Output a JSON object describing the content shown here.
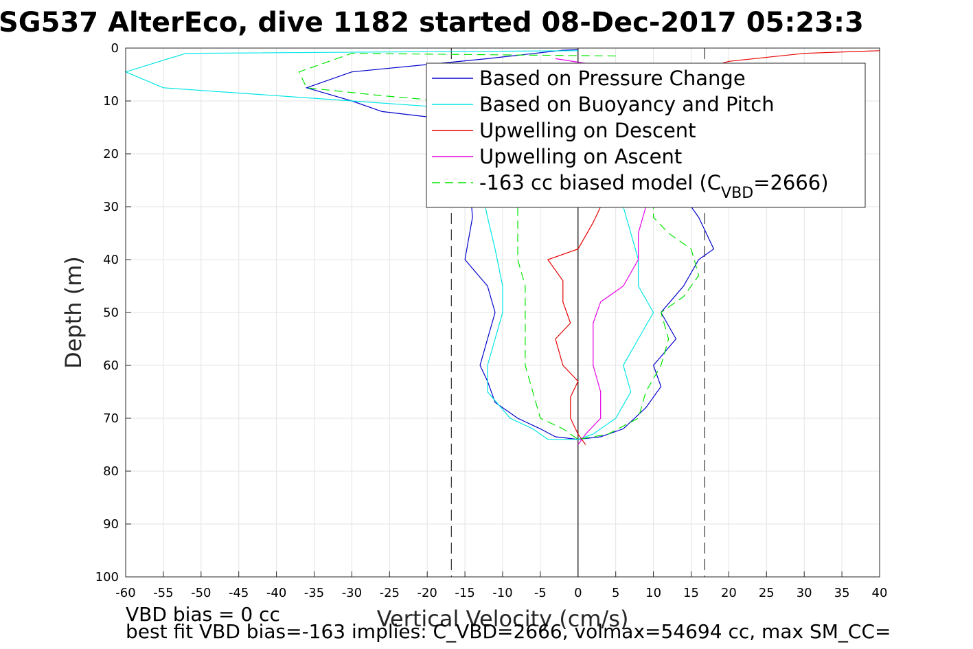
{
  "chart_data": {
    "type": "line",
    "title": "SG537 AlterEco, dive 1182 started 08-Dec-2017 05:23:3",
    "xlabel": "Vertical Velocity (cm/s)",
    "ylabel": "Depth (m)",
    "xlim": [
      -60,
      40
    ],
    "ylim": [
      0,
      100
    ],
    "y_reversed": true,
    "grid": true,
    "legend_position": "top-right",
    "xticks": [
      "-60",
      "-55",
      "-50",
      "-45",
      "-40",
      "-35",
      "-30",
      "-25",
      "-20",
      "-15",
      "-10",
      "-5",
      "0",
      "5",
      "10",
      "15",
      "20",
      "25",
      "30",
      "35",
      "40"
    ],
    "yticks": [
      "0",
      "10",
      "20",
      "30",
      "40",
      "50",
      "60",
      "70",
      "80",
      "90",
      "100"
    ],
    "reference_lines": [
      {
        "x": -16.8,
        "style": "dashed",
        "color": "#333333"
      },
      {
        "x": 0,
        "style": "solid",
        "color": "#000000"
      },
      {
        "x": 16.8,
        "style": "dashed",
        "color": "#333333"
      }
    ],
    "legend": [
      {
        "label": "Based on Pressure Change",
        "color": "#0000cc",
        "dash": "solid"
      },
      {
        "label": "Based on Buoyancy and Pitch",
        "color": "#00e5e5",
        "dash": "solid"
      },
      {
        "label": "Upwelling on Descent",
        "color": "#e50000",
        "dash": "solid"
      },
      {
        "label": "Upwelling on Ascent",
        "color": "#e500e5",
        "dash": "solid"
      },
      {
        "label": "-163 cc biased model (C",
        "sub": "VBD",
        "suffix": "=2666)",
        "color": "#00e500",
        "dash": "dashed"
      }
    ],
    "series": [
      {
        "name": "Based on Pressure Change",
        "color": "#0000cc",
        "dash": "solid",
        "points": [
          [
            0,
            0.3
          ],
          [
            -2,
            0.4
          ],
          [
            -12,
            2
          ],
          [
            -30,
            4.5
          ],
          [
            -36,
            7.5
          ],
          [
            -30,
            10
          ],
          [
            -26,
            12
          ],
          [
            -20,
            13
          ],
          [
            -15,
            14
          ],
          [
            -14,
            32
          ],
          [
            -15,
            40
          ],
          [
            -12,
            45
          ],
          [
            -11,
            50
          ],
          [
            -12,
            55
          ],
          [
            -13,
            60
          ],
          [
            -12,
            63
          ],
          [
            -11,
            67
          ],
          [
            -8,
            70
          ],
          [
            -5,
            72
          ],
          [
            -3,
            73.5
          ],
          [
            0,
            74
          ],
          [
            3,
            73.5
          ],
          [
            6,
            72
          ],
          [
            9,
            68
          ],
          [
            11,
            64
          ],
          [
            10,
            60
          ],
          [
            13,
            55
          ],
          [
            11,
            50
          ],
          [
            14,
            45
          ],
          [
            16,
            40
          ],
          [
            18,
            38
          ],
          [
            17,
            35
          ],
          [
            16,
            32
          ],
          [
            15,
            30
          ]
        ]
      },
      {
        "name": "Based on Buoyancy and Pitch",
        "color": "#00e5e5",
        "dash": "solid",
        "points": [
          [
            0,
            0.5
          ],
          [
            -52,
            1
          ],
          [
            -60,
            4.5
          ],
          [
            -55,
            7.5
          ],
          [
            -30,
            10
          ],
          [
            -20,
            11
          ],
          [
            -15,
            12
          ],
          [
            -12,
            32
          ],
          [
            -11,
            38
          ],
          [
            -10,
            45
          ],
          [
            -10,
            50
          ],
          [
            -11,
            55
          ],
          [
            -12,
            60
          ],
          [
            -12,
            65
          ],
          [
            -9,
            70
          ],
          [
            -6,
            72
          ],
          [
            -4,
            74
          ],
          [
            0,
            74
          ],
          [
            2,
            73
          ],
          [
            5,
            70
          ],
          [
            7,
            65
          ],
          [
            6,
            60
          ],
          [
            8,
            55
          ],
          [
            10,
            50
          ],
          [
            8,
            45
          ],
          [
            8,
            40
          ],
          [
            7,
            35
          ],
          [
            6,
            30
          ]
        ]
      },
      {
        "name": "Upwelling on Descent",
        "color": "#e50000",
        "dash": "solid",
        "points": [
          [
            40,
            0.5
          ],
          [
            30,
            1
          ],
          [
            20,
            2.5
          ],
          [
            15,
            4.5
          ],
          [
            8,
            10
          ],
          [
            5,
            20
          ],
          [
            3,
            30
          ],
          [
            2,
            33
          ],
          [
            0,
            38
          ],
          [
            -4,
            40
          ],
          [
            -2,
            44
          ],
          [
            -2,
            48
          ],
          [
            -1,
            52
          ],
          [
            -3,
            55
          ],
          [
            -2,
            60
          ],
          [
            0,
            63
          ],
          [
            -1,
            66
          ],
          [
            -1,
            70
          ],
          [
            0,
            73
          ],
          [
            1,
            75
          ]
        ]
      },
      {
        "name": "Upwelling on Ascent",
        "color": "#e500e5",
        "dash": "solid",
        "points": [
          [
            -3,
            2
          ],
          [
            6,
            4
          ],
          [
            8,
            10
          ],
          [
            9,
            20
          ],
          [
            9,
            30
          ],
          [
            8,
            35
          ],
          [
            8,
            40
          ],
          [
            6,
            45
          ],
          [
            3,
            48
          ],
          [
            2,
            52
          ],
          [
            2,
            55
          ],
          [
            2,
            60
          ],
          [
            3,
            65
          ],
          [
            3,
            70
          ],
          [
            1,
            73
          ],
          [
            0,
            75
          ]
        ]
      },
      {
        "name": "-163 cc biased model",
        "color": "#00e500",
        "dash": "dashed",
        "points": [
          [
            5,
            1.5
          ],
          [
            -30,
            1
          ],
          [
            -37,
            4.5
          ],
          [
            -36,
            7.5
          ],
          [
            -26,
            9
          ],
          [
            -18,
            10
          ],
          [
            -13,
            11
          ],
          [
            -10,
            14
          ],
          [
            -8,
            30
          ],
          [
            -8,
            40
          ],
          [
            -7,
            45
          ],
          [
            -7,
            50
          ],
          [
            -7,
            55
          ],
          [
            -7,
            60
          ],
          [
            -6,
            65
          ],
          [
            -5,
            70
          ],
          [
            -2,
            72
          ],
          [
            0,
            74
          ],
          [
            4,
            73
          ],
          [
            8,
            70
          ],
          [
            9,
            65
          ],
          [
            11,
            60
          ],
          [
            12,
            55
          ],
          [
            11,
            50
          ],
          [
            14,
            47
          ],
          [
            16,
            43
          ],
          [
            15,
            38
          ],
          [
            12,
            35
          ],
          [
            10,
            32
          ],
          [
            10,
            30
          ]
        ]
      }
    ]
  },
  "annotations": {
    "vbd_bias": "VBD bias = 0 cc",
    "best_fit": "best fit VBD bias=-163 implies: C_VBD=2666, volmax=54694 cc, max SM_CC="
  }
}
